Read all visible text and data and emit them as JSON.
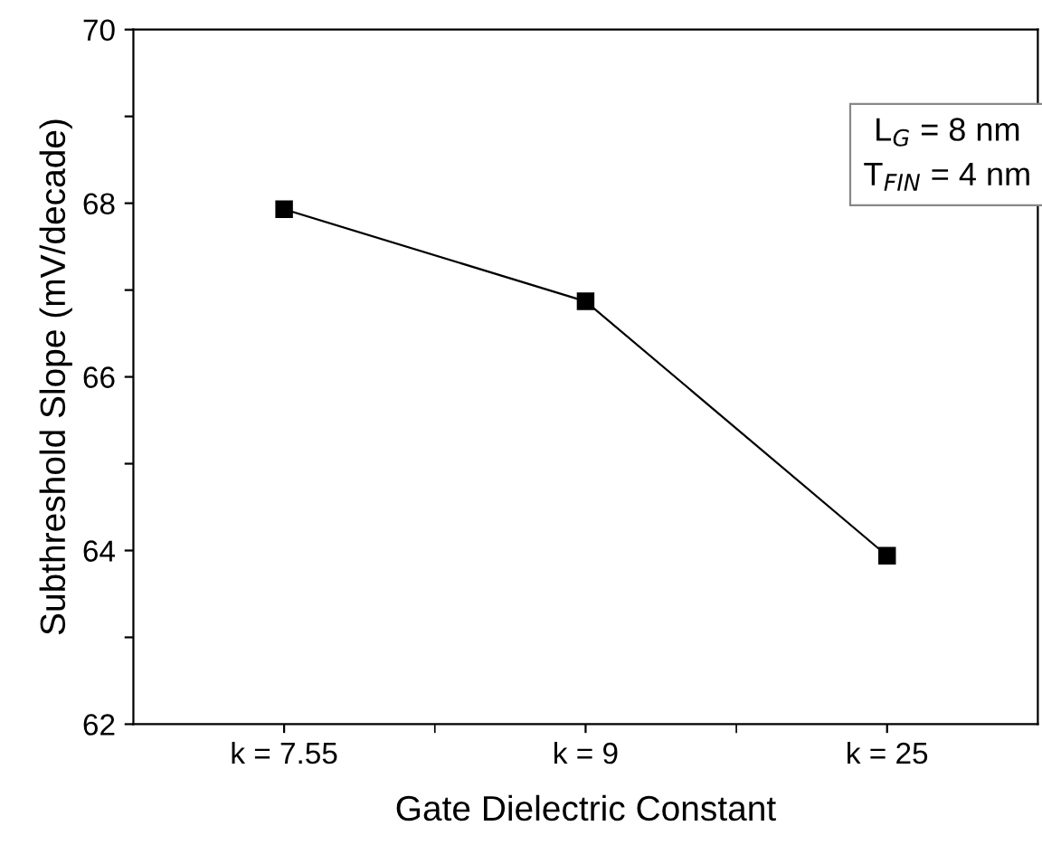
{
  "chart_data": {
    "type": "line",
    "xlabel": "Gate Dielectric Constant",
    "ylabel": "Subthreshold Slope (mV/decade)",
    "categories": [
      "k = 7.55",
      "k = 9",
      "k = 25"
    ],
    "series": [
      {
        "color": "#000000",
        "values": [
          67.93,
          66.87,
          63.94
        ]
      }
    ],
    "ylim": [
      62,
      70
    ],
    "yticks": [
      62,
      {
        "value": 63,
        "label": null
      },
      64,
      {
        "value": 65,
        "label": null
      },
      66,
      {
        "value": 67,
        "label": null
      },
      68,
      {
        "value": 69,
        "label": null
      },
      70
    ],
    "marker": "square",
    "line_style": "solid",
    "grid": false,
    "legend": false,
    "annotations": [
      "L$_{G}$ = 8 nm",
      "T$_{FIN}$ = 4 nm"
    ]
  }
}
